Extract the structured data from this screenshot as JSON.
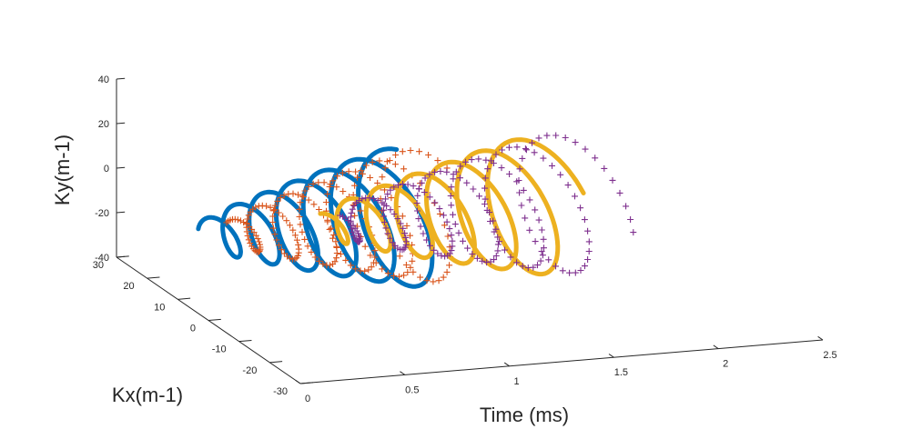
{
  "chart_data": {
    "type": "line",
    "view": "3d",
    "grid": false,
    "xlabel": "Time (ms)",
    "ylabel": "Kx(m-1)",
    "zlabel": "Ky(m-1)",
    "xlim": [
      0,
      2.5
    ],
    "ylim": [
      -30,
      30
    ],
    "zlim": [
      -40,
      40
    ],
    "x_ticks": [
      "0",
      "0.5",
      "1",
      "1.5",
      "2",
      "2.5"
    ],
    "y_ticks": [
      "-30",
      "-20",
      "-10",
      "0",
      "10",
      "20",
      "30"
    ],
    "z_ticks": [
      "-40",
      "-20",
      "0",
      "20",
      "40"
    ],
    "series": [
      {
        "color": "#0072BD",
        "marker": "line",
        "t_start": 0.0,
        "t_end": 0.97,
        "turns": 6.2,
        "r_start": 6,
        "r_end": 28
      },
      {
        "color": "#D95319",
        "marker": "+",
        "t_start": 0.12,
        "t_end": 1.08,
        "turns": 6.2,
        "r_start": 5,
        "r_end": 27
      },
      {
        "color": "#EDB120",
        "marker": "line",
        "t_start": 0.55,
        "t_end": 1.62,
        "turns": 6.2,
        "r_start": 5,
        "r_end": 28
      },
      {
        "color": "#7E2F8E",
        "marker": "+",
        "t_start": 0.62,
        "t_end": 1.8,
        "turns": 6.2,
        "r_start": 5,
        "r_end": 29
      }
    ]
  }
}
